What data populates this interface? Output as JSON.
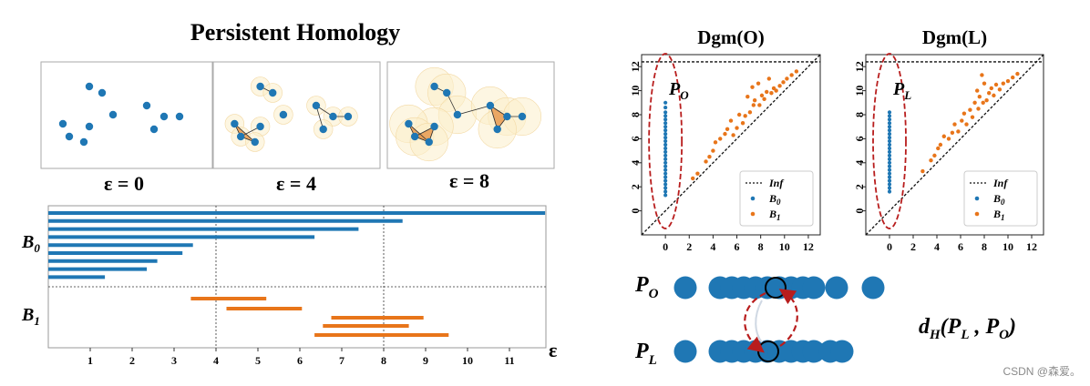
{
  "title": "Persistent Homology",
  "panels": [
    {
      "label": "ε = 0",
      "radius": 0
    },
    {
      "label": "ε = 4",
      "radius": 4
    },
    {
      "label": "ε = 8",
      "radius": 8
    }
  ],
  "barcode": {
    "xlabel": "ε",
    "xticks": [
      "1",
      "2",
      "3",
      "4",
      "5",
      "6",
      "7",
      "8",
      "9",
      "10",
      "11"
    ],
    "b0_label": "B0",
    "b1_label": "B1",
    "b0_bars": [
      [
        0,
        11.85
      ],
      [
        0,
        8.45
      ],
      [
        0,
        7.4
      ],
      [
        0,
        6.35
      ],
      [
        0,
        3.45
      ],
      [
        0,
        3.2
      ],
      [
        0,
        2.6
      ],
      [
        0,
        2.35
      ],
      [
        0,
        1.35
      ]
    ],
    "b1_bars": [
      [
        3.4,
        5.2
      ],
      [
        4.25,
        6.05
      ],
      [
        6.75,
        8.95
      ],
      [
        6.55,
        8.6
      ],
      [
        6.35,
        9.55
      ]
    ],
    "colors": {
      "b0": "#1f77b4",
      "b1": "#e8751a"
    }
  },
  "diagrams": [
    {
      "title": "Dgm(O)",
      "point_label": "PO",
      "b0_deaths": [
        9.0,
        8.6,
        8.2,
        7.9,
        7.6,
        7.3,
        7.0,
        6.7,
        6.4,
        6.1,
        5.8,
        5.5,
        5.2,
        4.9,
        4.6,
        4.3,
        4.0,
        3.7,
        3.4,
        3.1,
        2.8,
        2.5,
        2.2,
        1.9,
        1.6,
        1.3
      ],
      "b1_points": [
        [
          2.3,
          2.7
        ],
        [
          2.7,
          3.1
        ],
        [
          3.4,
          4.1
        ],
        [
          3.7,
          4.5
        ],
        [
          4.0,
          5.0
        ],
        [
          4.2,
          5.7
        ],
        [
          4.6,
          6.0
        ],
        [
          5.0,
          6.4
        ],
        [
          5.2,
          6.8
        ],
        [
          5.5,
          7.5
        ],
        [
          5.7,
          6.3
        ],
        [
          6.0,
          6.9
        ],
        [
          6.2,
          8.0
        ],
        [
          6.5,
          7.3
        ],
        [
          6.7,
          7.9
        ],
        [
          6.9,
          9.5
        ],
        [
          7.1,
          8.2
        ],
        [
          7.3,
          10.3
        ],
        [
          7.4,
          8.8
        ],
        [
          7.5,
          9.2
        ],
        [
          7.8,
          10.6
        ],
        [
          7.9,
          8.8
        ],
        [
          8.1,
          9.6
        ],
        [
          8.3,
          9.3
        ],
        [
          8.5,
          9.9
        ],
        [
          8.7,
          11.0
        ],
        [
          8.9,
          9.8
        ],
        [
          9.1,
          10.2
        ],
        [
          9.3,
          10.0
        ],
        [
          9.6,
          10.4
        ],
        [
          9.9,
          10.7
        ],
        [
          10.2,
          11.0
        ],
        [
          10.6,
          11.3
        ],
        [
          11.0,
          11.6
        ]
      ]
    },
    {
      "title": "Dgm(L)",
      "point_label": "PL",
      "b0_deaths": [
        8.2,
        7.9,
        7.6,
        7.3,
        7.0,
        6.7,
        6.4,
        6.1,
        5.8,
        5.5,
        5.2,
        4.9,
        4.6,
        4.3,
        4.0,
        3.7,
        3.4,
        3.1,
        2.8,
        2.5,
        2.2,
        1.9,
        1.6
      ],
      "b1_points": [
        [
          2.8,
          3.3
        ],
        [
          3.5,
          4.2
        ],
        [
          3.8,
          4.6
        ],
        [
          4.1,
          5.2
        ],
        [
          4.3,
          5.5
        ],
        [
          4.6,
          6.2
        ],
        [
          5.0,
          6.0
        ],
        [
          5.3,
          6.5
        ],
        [
          5.5,
          7.2
        ],
        [
          5.8,
          6.6
        ],
        [
          6.1,
          7.5
        ],
        [
          6.3,
          8.1
        ],
        [
          6.5,
          7.2
        ],
        [
          6.8,
          8.4
        ],
        [
          7.0,
          7.8
        ],
        [
          7.2,
          9.0
        ],
        [
          7.4,
          10.0
        ],
        [
          7.5,
          8.5
        ],
        [
          7.6,
          9.5
        ],
        [
          7.8,
          11.3
        ],
        [
          7.9,
          9.0
        ],
        [
          8.0,
          10.6
        ],
        [
          8.2,
          9.2
        ],
        [
          8.4,
          9.8
        ],
        [
          8.6,
          10.2
        ],
        [
          8.8,
          9.6
        ],
        [
          9.0,
          10.5
        ],
        [
          9.3,
          10.1
        ],
        [
          9.6,
          10.6
        ],
        [
          10.0,
          10.8
        ],
        [
          10.4,
          11.1
        ],
        [
          10.8,
          11.4
        ]
      ]
    }
  ],
  "diagram_axes": {
    "ticks": [
      "0",
      "2",
      "4",
      "6",
      "8",
      "10",
      "12"
    ],
    "legend": [
      "Inf",
      "B0",
      "B1"
    ]
  },
  "dist_label": "dH(PL , PO)",
  "row_labels": {
    "top": "PO",
    "bottom": "PL"
  },
  "watermark": "CSDN @森爱。"
}
